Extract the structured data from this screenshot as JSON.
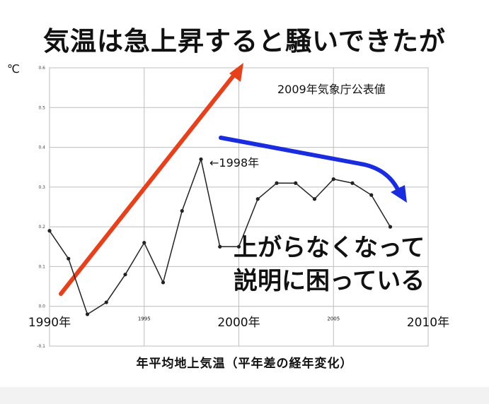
{
  "headline": "気温は急上昇すると騒いできたが",
  "source_note": "2009年気象庁公表値",
  "unit_label": "℃",
  "peak_label": "←1998年",
  "annotation_line1": "上がらなくなって",
  "annotation_line2": "説明に困っている",
  "bottom_label": "年平均地上気温（平年差の経年変化）",
  "colors": {
    "rise_arrow": "#e8401a",
    "fall_arrow": "#1a2ce0",
    "line": "#222222",
    "grid": "#bdbdbd"
  },
  "chart_data": {
    "type": "line",
    "title": "",
    "xlabel": "",
    "ylabel": "℃",
    "xlim": [
      1990,
      2010
    ],
    "ylim": [
      -0.1,
      0.6
    ],
    "grid": true,
    "x_ticks": [
      {
        "value": 1990,
        "label": "1990年",
        "size": "large"
      },
      {
        "value": 1995,
        "label": "1995",
        "size": "small"
      },
      {
        "value": 2000,
        "label": "2000年",
        "size": "large"
      },
      {
        "value": 2005,
        "label": "2005",
        "size": "small"
      },
      {
        "value": 2010,
        "label": "2010年",
        "size": "large"
      }
    ],
    "y_ticks": [
      {
        "value": -0.1,
        "label": "-0.1"
      },
      {
        "value": 0.0,
        "label": "0.0"
      },
      {
        "value": 0.1,
        "label": "0.1"
      },
      {
        "value": 0.2,
        "label": "0.2"
      },
      {
        "value": 0.3,
        "label": "0.3"
      },
      {
        "value": 0.4,
        "label": "0.4"
      },
      {
        "value": 0.5,
        "label": "0.5"
      },
      {
        "value": 0.6,
        "label": "0.6"
      }
    ],
    "series": [
      {
        "x": [
          1990,
          1991,
          1992,
          1993,
          1994,
          1995,
          1996,
          1997,
          1998,
          1999,
          2000,
          2001,
          2002,
          2003,
          2004,
          2005,
          2006,
          2007,
          2008
        ],
        "y": [
          0.19,
          0.12,
          -0.02,
          0.01,
          0.08,
          0.16,
          0.06,
          0.24,
          0.37,
          0.15,
          0.15,
          0.27,
          0.31,
          0.31,
          0.27,
          0.32,
          0.31,
          0.28,
          0.2
        ]
      }
    ]
  }
}
